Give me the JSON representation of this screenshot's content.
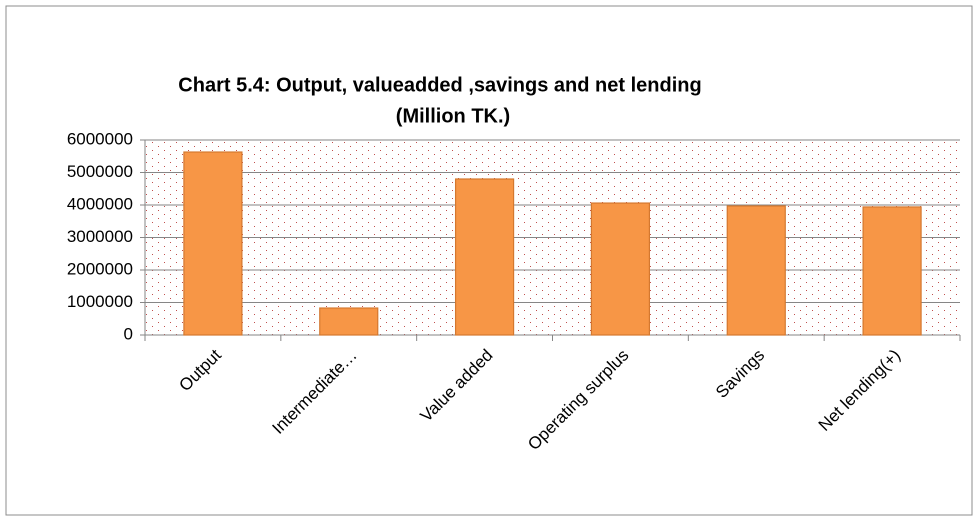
{
  "chart_data": {
    "type": "bar",
    "title": "Chart 5.4: Output, valueadded ,savings and net lending",
    "subtitle": "(Million TK.)",
    "categories": [
      "Output",
      "Intermediate…",
      "Value added",
      "Operating surplus",
      "Savings",
      "Net lending(+)"
    ],
    "values": [
      5630000,
      830000,
      4800000,
      4060000,
      3970000,
      3940000
    ],
    "color": "#f79646",
    "ylim": [
      0,
      6000000
    ],
    "yticks": [
      0,
      1000000,
      2000000,
      3000000,
      4000000,
      5000000,
      6000000
    ],
    "grid": true
  }
}
